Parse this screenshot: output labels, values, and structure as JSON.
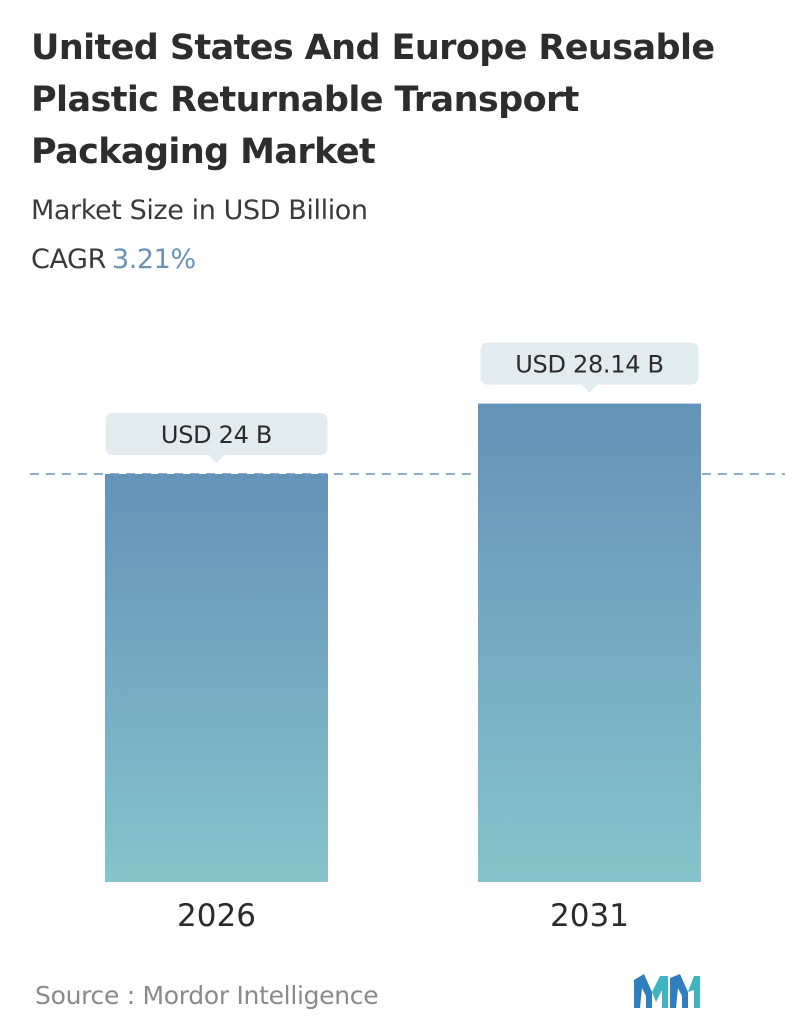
{
  "header": {
    "title": "United States And Europe Reusable Plastic Returnable Transport Packaging Market",
    "subtitle": "Market Size in USD Billion",
    "cagr_label": "CAGR",
    "cagr_value": "3.21%"
  },
  "chart_data": {
    "type": "bar",
    "categories": [
      "2026",
      "2031"
    ],
    "values": [
      24,
      28.14
    ],
    "data_labels": [
      "USD 24 B",
      "USD 28.14 B"
    ],
    "title": "United States And Europe Reusable Plastic Returnable Transport Packaging Market",
    "subtitle": "Market Size in USD Billion",
    "xlabel": "",
    "ylabel": "",
    "reference_line": 24,
    "grid": false,
    "legend": "none"
  },
  "colors": {
    "bar_top": "#6592b8",
    "bar_bottom": "#85c4cb",
    "label_bg": "#e2ecee",
    "reference_line": "#6d93b4",
    "accent": "#6a93b6"
  },
  "footer": {
    "source": "Source :  Mordor Intelligence",
    "logo_icon": "mordor-intelligence-logo-icon"
  }
}
